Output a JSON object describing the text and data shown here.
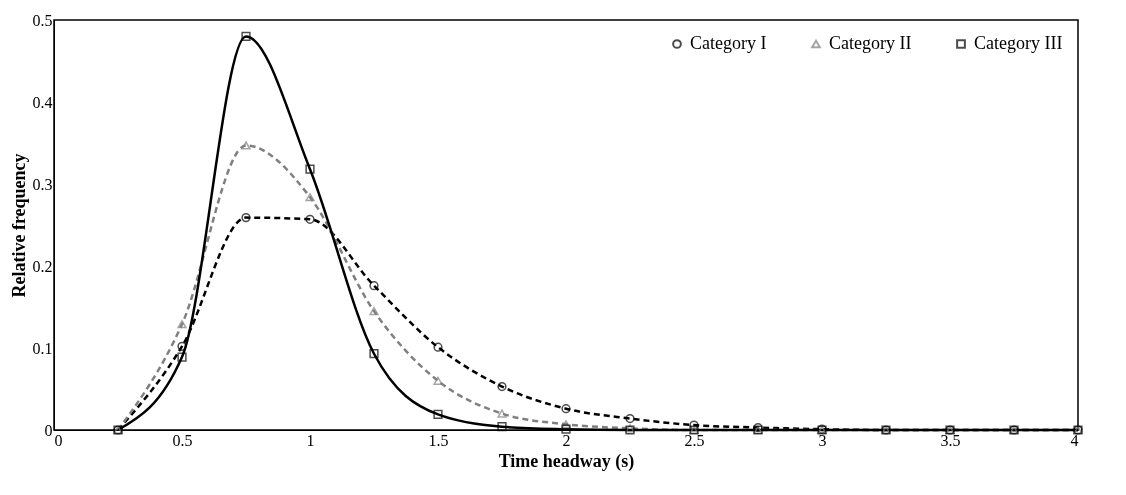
{
  "chart_data": {
    "type": "line",
    "xlabel": "Time headway (s)",
    "ylabel": "Relative frequency",
    "x": [
      0.25,
      0.5,
      0.75,
      1,
      1.25,
      1.5,
      1.75,
      2,
      2.25,
      2.5,
      2.75,
      3,
      3.25,
      3.5,
      3.75,
      4
    ],
    "series": [
      {
        "name": "Category I",
        "color": "#000000",
        "line_style": "dashed",
        "marker": "circle",
        "values": [
          0,
          0.102,
          0.259,
          0.257,
          0.176,
          0.101,
          0.053,
          0.026,
          0.014,
          0.006,
          0.003,
          0.001,
          0,
          0,
          0,
          0
        ]
      },
      {
        "name": "Category II",
        "color": "#808080",
        "line_style": "dashed",
        "marker": "triangle",
        "values": [
          0,
          0.129,
          0.347,
          0.284,
          0.145,
          0.06,
          0.02,
          0.007,
          0.002,
          0,
          0,
          0,
          0,
          0,
          0,
          0
        ]
      },
      {
        "name": "Category III",
        "color": "#000000",
        "line_style": "solid",
        "marker": "square",
        "values": [
          0,
          0.089,
          0.48,
          0.318,
          0.093,
          0.019,
          0.004,
          0.001,
          0,
          0,
          0,
          0,
          0,
          0,
          0,
          0
        ]
      }
    ],
    "xlim": [
      0,
      4
    ],
    "xticks": [
      0,
      0.5,
      1,
      1.5,
      2,
      2.5,
      3,
      3.5,
      4
    ],
    "ylim": [
      0,
      0.5
    ],
    "yticks": [
      0,
      0.1,
      0.2,
      0.3,
      0.4,
      0.5
    ],
    "grid": false,
    "legend": "top right"
  }
}
